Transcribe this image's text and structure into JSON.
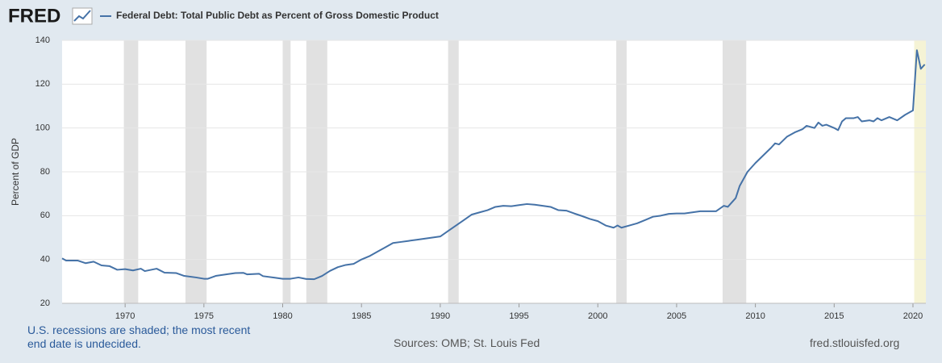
{
  "logo": "FRED",
  "chart_data": {
    "type": "line",
    "y_label": "Percent of GDP",
    "x": [
      1966.0,
      1966.25,
      1967.0,
      1967.5,
      1968.0,
      1968.5,
      1969.0,
      1969.5,
      1970.0,
      1970.5,
      1971.0,
      1971.25,
      1972.0,
      1972.5,
      1973.25,
      1973.75,
      1974.5,
      1975.0,
      1975.25,
      1975.75,
      1976.5,
      1977.0,
      1977.5,
      1977.75,
      1978.5,
      1978.75,
      1979.5,
      1980.0,
      1980.5,
      1981.0,
      1981.5,
      1982.0,
      1982.5,
      1983.0,
      1983.5,
      1984.0,
      1984.5,
      1985.0,
      1985.5,
      1986.0,
      1986.5,
      1987.0,
      1987.5,
      1988.0,
      1988.5,
      1989.0,
      1989.5,
      1990.0,
      1990.5,
      1991.0,
      1991.5,
      1992.0,
      1992.5,
      1993.0,
      1993.5,
      1994.0,
      1994.5,
      1995.0,
      1995.5,
      1996.0,
      1996.5,
      1997.0,
      1997.5,
      1998.0,
      1998.5,
      1999.0,
      1999.5,
      2000.0,
      2000.5,
      2001.0,
      2001.25,
      2001.5,
      2002.0,
      2002.5,
      2003.0,
      2003.5,
      2004.0,
      2004.5,
      2005.0,
      2005.5,
      2006.0,
      2006.5,
      2007.0,
      2007.5,
      2008.0,
      2008.25,
      2008.75,
      2009.0,
      2009.5,
      2010.0,
      2010.5,
      2011.0,
      2011.25,
      2011.5,
      2012.0,
      2012.5,
      2013.0,
      2013.25,
      2013.75,
      2014.0,
      2014.25,
      2014.5,
      2015.0,
      2015.25,
      2015.5,
      2015.75,
      2016.25,
      2016.5,
      2016.75,
      2017.25,
      2017.5,
      2017.75,
      2018.0,
      2018.5,
      2019.0,
      2019.5,
      2020.0,
      2020.25,
      2020.5,
      2020.75
    ],
    "series": [
      {
        "name": "Federal Debt: Total Public Debt as Percent of Gross Domestic Product",
        "color": "#4572a7",
        "values": [
          40.5,
          39.5,
          39.5,
          38.3,
          39,
          37.3,
          37,
          35.3,
          35.6,
          35,
          35.8,
          34.7,
          35.8,
          34,
          33.8,
          32.5,
          31.8,
          31.2,
          31.2,
          32.5,
          33.3,
          33.8,
          33.9,
          33.2,
          33.5,
          32.4,
          31.7,
          31.2,
          31.2,
          31.8,
          31.1,
          31,
          32.5,
          34.8,
          36.5,
          37.5,
          38,
          40,
          41.5,
          43.5,
          45.5,
          47.5,
          48,
          48.5,
          49,
          49.5,
          50,
          50.5,
          53,
          55.5,
          58,
          60.5,
          61.5,
          62.5,
          64,
          64.5,
          64.3,
          64.8,
          65.3,
          65,
          64.5,
          64,
          62.5,
          62.3,
          61,
          59.8,
          58.5,
          57.5,
          55.5,
          54.5,
          55.5,
          54.5,
          55.5,
          56.5,
          58,
          59.5,
          60,
          60.8,
          61,
          61,
          61.5,
          62,
          62,
          62,
          64.5,
          64,
          68,
          73.5,
          80,
          84,
          87.5,
          91,
          93,
          92.5,
          96,
          98,
          99.5,
          101,
          100,
          102.5,
          101,
          101.5,
          100,
          99,
          103,
          104.5,
          104.5,
          105,
          103,
          103.5,
          103,
          104.5,
          103.5,
          105,
          103.5,
          106,
          108,
          135.5,
          127,
          129
        ]
      }
    ],
    "recessions": [
      [
        1969.92,
        1970.83
      ],
      [
        1973.83,
        1975.17
      ],
      [
        1980.0,
        1980.5
      ],
      [
        1981.5,
        1982.83
      ],
      [
        1990.5,
        1991.17
      ],
      [
        2001.17,
        2001.83
      ],
      [
        2007.92,
        2009.42
      ]
    ],
    "recession_color": "#e1e1e1",
    "undecided_recession": [
      2020.08,
      2020.82
    ],
    "undecided_color": "#f5f3d5",
    "xlim": [
      1966,
      2020.82
    ],
    "xticks": [
      1970,
      1975,
      1980,
      1985,
      1990,
      1995,
      2000,
      2005,
      2010,
      2015,
      2020
    ],
    "ylim": [
      20,
      140
    ],
    "yticks": [
      20,
      40,
      60,
      80,
      100,
      120,
      140
    ],
    "grid": true,
    "notes": "U.S. recessions are shaded; the most recent end date is undecided.",
    "source": "Sources: OMB; St. Louis Fed",
    "site": "fred.stlouisfed.org"
  }
}
